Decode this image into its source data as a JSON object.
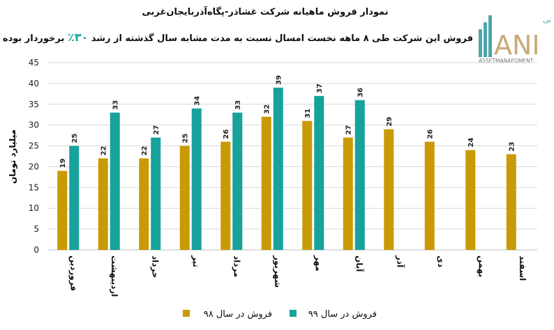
{
  "title": "نمودار فروش ماهیانه شرکت غشاذر-پگاه‌آذربایجان‌غربی",
  "subtitle_before": "فروش این شرکت طی ۸ ماهه نخست امسال نسبت به مدت مشابه سال گذشته از رشد",
  "subtitle_highlight": "۳۰٪",
  "subtitle_after": "برخوردار بوده است.",
  "logo": {
    "persian": "سبدگردان مانی",
    "letters": "ANI",
    "english": "ASSETMANAEGMENT"
  },
  "colors": {
    "series98": "#c99a06",
    "series99": "#17a29c",
    "grid": "#d9d9d9"
  },
  "chart_data": {
    "type": "bar",
    "ylabel": "میلیارد تومان",
    "ylim": [
      0,
      45
    ],
    "yticks": [
      0,
      5,
      10,
      15,
      20,
      25,
      30,
      35,
      40,
      45
    ],
    "grid": true,
    "legend_position": "bottom",
    "categories": [
      "فروردین",
      "اردیبهشت",
      "خرداد",
      "تیر",
      "مرداد",
      "شهریور",
      "مهر",
      "آبان",
      "آذر",
      "دی",
      "بهمن",
      "اسفند"
    ],
    "series": [
      {
        "name": "فروش در سال ۹۸",
        "values": [
          19,
          22,
          22,
          25,
          26,
          32,
          31,
          27,
          29,
          26,
          24,
          23
        ]
      },
      {
        "name": "فروش در سال ۹۹",
        "values": [
          25,
          33,
          27,
          34,
          33,
          39,
          37,
          36,
          null,
          null,
          null,
          null
        ]
      }
    ]
  }
}
